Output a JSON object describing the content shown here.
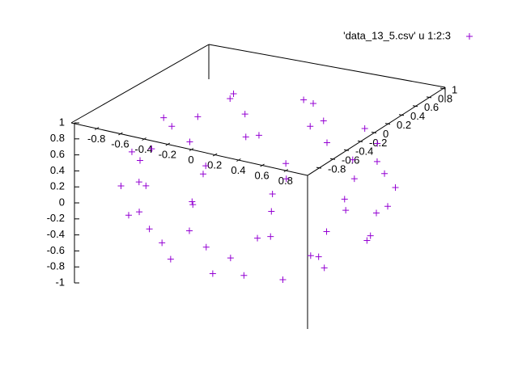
{
  "chart_data": {
    "type": "scatter3d",
    "xlim": [
      -1,
      1
    ],
    "ylim": [
      -1,
      1
    ],
    "zlim": [
      -1,
      1
    ],
    "xticks": [
      -0.8,
      -0.6,
      -0.4,
      -0.2,
      0,
      0.2,
      0.4,
      0.6,
      0.8
    ],
    "yticks": [
      -0.8,
      -0.6,
      -0.4,
      -0.2,
      0,
      0.2,
      0.4,
      0.6,
      0.8,
      1
    ],
    "zticks": [
      -1,
      -0.8,
      -0.6,
      -0.4,
      -0.2,
      0,
      0.2,
      0.4,
      0.6,
      0.8,
      1
    ],
    "legend": "top-right",
    "series": [
      {
        "name": "'data_13_5.csv' u 1:2:3",
        "color": "#9400d3",
        "x": [
          0.44,
          0.14,
          -0.36,
          -0.36,
          0.14,
          0.8,
          0.57,
          0,
          -0.57,
          -0.8,
          -0.57,
          0,
          0.57,
          0.9,
          0.56,
          0,
          -0.56,
          -0.9,
          -0.9,
          -0.56,
          0,
          0.56,
          0.9,
          1,
          0.87,
          0.5,
          0,
          -0.5,
          -0.87,
          -1,
          -0.87,
          -0.5,
          0,
          0.5,
          0.87,
          0.95,
          0.77,
          0.29,
          -0.29,
          -0.77,
          -0.95,
          -0.77,
          -0.29,
          0.29,
          0.77,
          0.74,
          0.31,
          -0.31,
          -0.74,
          -0.74,
          -0.31,
          0.31,
          0.74,
          0.36,
          -0.14,
          -0.44,
          -0.14,
          0.36
        ],
        "y": [
          0,
          0.42,
          0.26,
          -0.26,
          -0.42,
          0,
          0.57,
          0.8,
          0.57,
          0,
          -0.57,
          -0.8,
          -0.57,
          0.29,
          0.77,
          0.95,
          0.77,
          0.29,
          -0.29,
          -0.77,
          -0.95,
          -0.77,
          -0.29,
          0,
          0.5,
          0.87,
          1,
          0.87,
          0.5,
          0,
          -0.5,
          -0.87,
          -1,
          -0.87,
          -0.5,
          0,
          0.56,
          0.9,
          0.9,
          0.56,
          0,
          -0.56,
          -0.9,
          -0.9,
          -0.56,
          0.31,
          0.74,
          0.74,
          0.31,
          -0.31,
          -0.74,
          -0.74,
          -0.31,
          0.26,
          0.42,
          0,
          -0.42,
          -0.26
        ],
        "z": [
          0.9,
          0.9,
          0.9,
          0.9,
          0.9,
          0.6,
          0.6,
          0.6,
          0.6,
          0.6,
          0.6,
          0.6,
          0.6,
          0.3,
          0.3,
          0.3,
          0.3,
          0.3,
          0.3,
          0.3,
          0.3,
          0.3,
          0.3,
          0,
          0,
          0,
          0,
          0,
          0,
          0,
          0,
          0,
          0,
          0,
          0,
          -0.3,
          -0.3,
          -0.3,
          -0.3,
          -0.3,
          -0.3,
          -0.3,
          -0.3,
          -0.3,
          -0.3,
          -0.6,
          -0.6,
          -0.6,
          -0.6,
          -0.6,
          -0.6,
          -0.6,
          -0.6,
          -0.9,
          -0.9,
          -0.9,
          -0.9,
          -0.9
        ]
      }
    ]
  }
}
